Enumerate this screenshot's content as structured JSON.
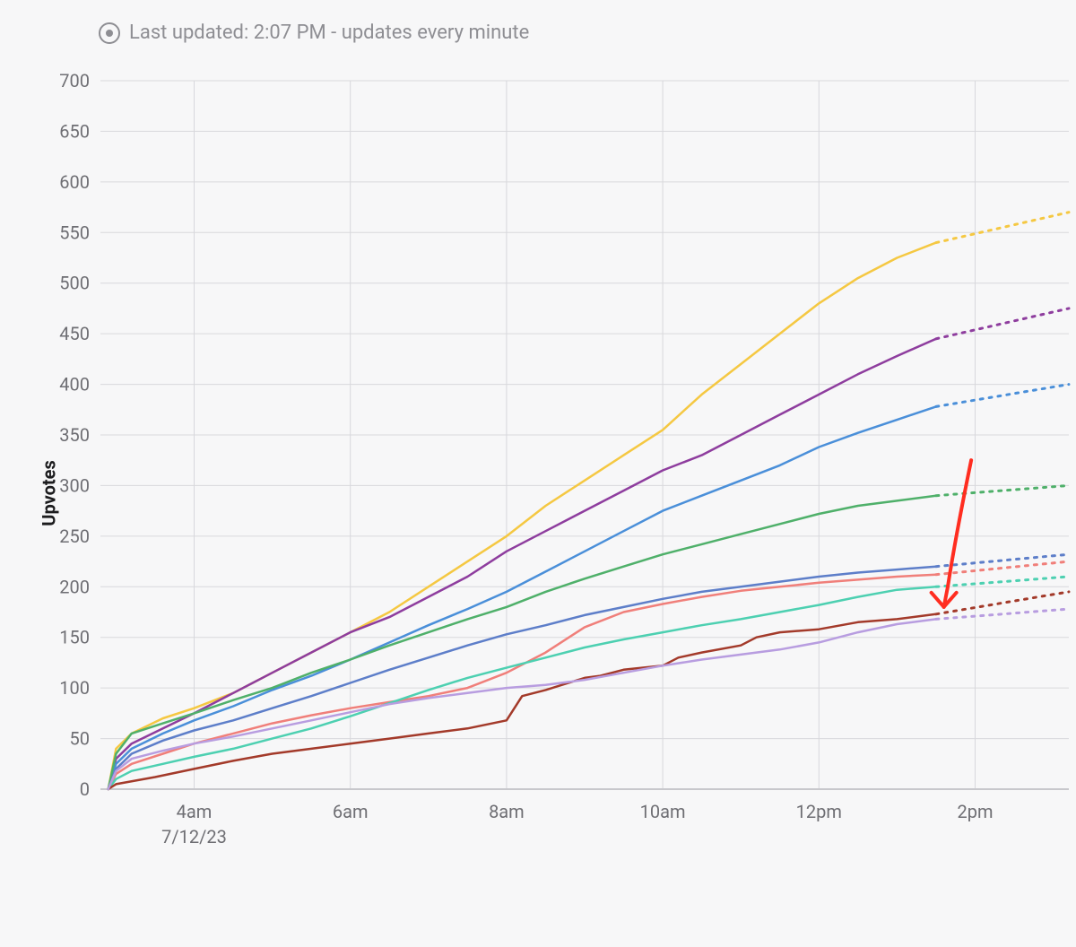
{
  "header": {
    "status_text": "Last updated: 2:07 PM - updates every minute"
  },
  "chart": {
    "type": "line",
    "ylabel": "Upvotes",
    "date_label": "7/12/23",
    "background_color": "#f7f7f8",
    "grid_color": "#d8d8dc",
    "axis_text_color": "#6e6e73",
    "line_width": 2.5,
    "forecast_dash": "3 7",
    "x_range_hours": [
      2.8,
      15.2
    ],
    "ylim": [
      0,
      700
    ],
    "ytick_step": 50,
    "yticks": [
      0,
      50,
      100,
      150,
      200,
      250,
      300,
      350,
      400,
      450,
      500,
      550,
      600,
      650,
      700
    ],
    "xticks": [
      {
        "h": 4,
        "label": "4am"
      },
      {
        "h": 6,
        "label": "6am"
      },
      {
        "h": 8,
        "label": "8am"
      },
      {
        "h": 10,
        "label": "10am"
      },
      {
        "h": 12,
        "label": "12pm"
      },
      {
        "h": 14,
        "label": "2pm"
      }
    ],
    "series": [
      {
        "name": "yellow",
        "color": "#f5c842",
        "points": [
          [
            2.9,
            0
          ],
          [
            3.0,
            40
          ],
          [
            3.2,
            55
          ],
          [
            3.6,
            70
          ],
          [
            4.0,
            80
          ],
          [
            4.5,
            95
          ],
          [
            5.0,
            115
          ],
          [
            5.5,
            135
          ],
          [
            6.0,
            155
          ],
          [
            6.5,
            175
          ],
          [
            7.0,
            200
          ],
          [
            7.5,
            225
          ],
          [
            8.0,
            250
          ],
          [
            8.5,
            280
          ],
          [
            9.0,
            305
          ],
          [
            9.5,
            330
          ],
          [
            10.0,
            355
          ],
          [
            10.5,
            390
          ],
          [
            11.0,
            420
          ],
          [
            11.5,
            450
          ],
          [
            12.0,
            480
          ],
          [
            12.5,
            505
          ],
          [
            13.0,
            525
          ],
          [
            13.5,
            540
          ]
        ],
        "forecast_end": [
          15.2,
          570
        ]
      },
      {
        "name": "purple",
        "color": "#8e3d9e",
        "points": [
          [
            2.9,
            0
          ],
          [
            3.0,
            30
          ],
          [
            3.2,
            45
          ],
          [
            3.6,
            60
          ],
          [
            4.0,
            75
          ],
          [
            4.5,
            95
          ],
          [
            5.0,
            115
          ],
          [
            5.5,
            135
          ],
          [
            6.0,
            155
          ],
          [
            6.5,
            170
          ],
          [
            7.0,
            190
          ],
          [
            7.5,
            210
          ],
          [
            8.0,
            235
          ],
          [
            8.5,
            255
          ],
          [
            9.0,
            275
          ],
          [
            9.5,
            295
          ],
          [
            10.0,
            315
          ],
          [
            10.5,
            330
          ],
          [
            11.0,
            350
          ],
          [
            11.5,
            370
          ],
          [
            12.0,
            390
          ],
          [
            12.5,
            410
          ],
          [
            13.0,
            428
          ],
          [
            13.5,
            445
          ]
        ],
        "forecast_end": [
          15.2,
          475
        ]
      },
      {
        "name": "blue",
        "color": "#4a8fd9",
        "points": [
          [
            2.9,
            0
          ],
          [
            3.0,
            25
          ],
          [
            3.2,
            40
          ],
          [
            3.6,
            55
          ],
          [
            4.0,
            68
          ],
          [
            4.5,
            82
          ],
          [
            5.0,
            98
          ],
          [
            5.5,
            112
          ],
          [
            6.0,
            128
          ],
          [
            6.5,
            145
          ],
          [
            7.0,
            162
          ],
          [
            7.5,
            178
          ],
          [
            8.0,
            195
          ],
          [
            8.5,
            215
          ],
          [
            9.0,
            235
          ],
          [
            9.5,
            255
          ],
          [
            10.0,
            275
          ],
          [
            10.5,
            290
          ],
          [
            11.0,
            305
          ],
          [
            11.5,
            320
          ],
          [
            12.0,
            338
          ],
          [
            12.5,
            352
          ],
          [
            13.0,
            365
          ],
          [
            13.5,
            378
          ]
        ],
        "forecast_end": [
          15.2,
          400
        ]
      },
      {
        "name": "green",
        "color": "#4fb06a",
        "points": [
          [
            2.9,
            0
          ],
          [
            3.0,
            35
          ],
          [
            3.2,
            55
          ],
          [
            3.6,
            65
          ],
          [
            4.0,
            75
          ],
          [
            4.5,
            88
          ],
          [
            5.0,
            100
          ],
          [
            5.5,
            115
          ],
          [
            6.0,
            128
          ],
          [
            6.5,
            142
          ],
          [
            7.0,
            155
          ],
          [
            7.5,
            168
          ],
          [
            8.0,
            180
          ],
          [
            8.5,
            195
          ],
          [
            9.0,
            208
          ],
          [
            9.5,
            220
          ],
          [
            10.0,
            232
          ],
          [
            10.5,
            242
          ],
          [
            11.0,
            252
          ],
          [
            11.5,
            262
          ],
          [
            12.0,
            272
          ],
          [
            12.5,
            280
          ],
          [
            13.0,
            285
          ],
          [
            13.5,
            290
          ]
        ],
        "forecast_end": [
          15.2,
          300
        ]
      },
      {
        "name": "midblue",
        "color": "#5d7ec9",
        "points": [
          [
            2.9,
            0
          ],
          [
            3.0,
            20
          ],
          [
            3.2,
            35
          ],
          [
            3.6,
            48
          ],
          [
            4.0,
            58
          ],
          [
            4.5,
            68
          ],
          [
            5.0,
            80
          ],
          [
            5.5,
            92
          ],
          [
            6.0,
            105
          ],
          [
            6.5,
            118
          ],
          [
            7.0,
            130
          ],
          [
            7.5,
            142
          ],
          [
            8.0,
            153
          ],
          [
            8.5,
            162
          ],
          [
            9.0,
            172
          ],
          [
            9.5,
            180
          ],
          [
            10.0,
            188
          ],
          [
            10.5,
            195
          ],
          [
            11.0,
            200
          ],
          [
            11.5,
            205
          ],
          [
            12.0,
            210
          ],
          [
            12.5,
            214
          ],
          [
            13.0,
            217
          ],
          [
            13.5,
            220
          ]
        ],
        "forecast_end": [
          15.2,
          232
        ]
      },
      {
        "name": "salmon",
        "color": "#f07f7a",
        "points": [
          [
            2.9,
            0
          ],
          [
            3.0,
            15
          ],
          [
            3.2,
            25
          ],
          [
            3.6,
            35
          ],
          [
            4.0,
            45
          ],
          [
            4.5,
            55
          ],
          [
            5.0,
            65
          ],
          [
            5.5,
            73
          ],
          [
            6.0,
            80
          ],
          [
            6.5,
            86
          ],
          [
            7.0,
            92
          ],
          [
            7.5,
            100
          ],
          [
            8.0,
            115
          ],
          [
            8.5,
            135
          ],
          [
            9.0,
            160
          ],
          [
            9.5,
            175
          ],
          [
            10.0,
            183
          ],
          [
            10.5,
            190
          ],
          [
            11.0,
            196
          ],
          [
            11.5,
            200
          ],
          [
            12.0,
            204
          ],
          [
            12.5,
            207
          ],
          [
            13.0,
            210
          ],
          [
            13.5,
            212
          ]
        ],
        "forecast_end": [
          15.2,
          225
        ]
      },
      {
        "name": "teal",
        "color": "#4dd0b1",
        "points": [
          [
            2.9,
            0
          ],
          [
            3.0,
            10
          ],
          [
            3.2,
            18
          ],
          [
            3.6,
            25
          ],
          [
            4.0,
            32
          ],
          [
            4.5,
            40
          ],
          [
            5.0,
            50
          ],
          [
            5.5,
            60
          ],
          [
            6.0,
            72
          ],
          [
            6.5,
            85
          ],
          [
            7.0,
            98
          ],
          [
            7.5,
            110
          ],
          [
            8.0,
            120
          ],
          [
            8.5,
            130
          ],
          [
            9.0,
            140
          ],
          [
            9.5,
            148
          ],
          [
            10.0,
            155
          ],
          [
            10.5,
            162
          ],
          [
            11.0,
            168
          ],
          [
            11.5,
            175
          ],
          [
            12.0,
            182
          ],
          [
            12.5,
            190
          ],
          [
            13.0,
            197
          ],
          [
            13.5,
            200
          ]
        ],
        "forecast_end": [
          15.2,
          210
        ]
      },
      {
        "name": "darkred",
        "color": "#a33a2a",
        "points": [
          [
            2.9,
            0
          ],
          [
            3.0,
            5
          ],
          [
            3.5,
            12
          ],
          [
            4.0,
            20
          ],
          [
            4.5,
            28
          ],
          [
            5.0,
            35
          ],
          [
            5.5,
            40
          ],
          [
            6.0,
            45
          ],
          [
            6.5,
            50
          ],
          [
            7.0,
            55
          ],
          [
            7.5,
            60
          ],
          [
            8.0,
            68
          ],
          [
            8.2,
            92
          ],
          [
            8.5,
            98
          ],
          [
            9.0,
            110
          ],
          [
            9.2,
            112
          ],
          [
            9.5,
            118
          ],
          [
            10.0,
            122
          ],
          [
            10.2,
            130
          ],
          [
            10.5,
            135
          ],
          [
            11.0,
            142
          ],
          [
            11.2,
            150
          ],
          [
            11.5,
            155
          ],
          [
            12.0,
            158
          ],
          [
            12.5,
            165
          ],
          [
            13.0,
            168
          ],
          [
            13.5,
            173
          ]
        ],
        "forecast_end": [
          15.2,
          195
        ]
      },
      {
        "name": "lavender",
        "color": "#b89de0",
        "points": [
          [
            2.9,
            0
          ],
          [
            3.0,
            18
          ],
          [
            3.2,
            30
          ],
          [
            3.6,
            38
          ],
          [
            4.0,
            45
          ],
          [
            4.5,
            52
          ],
          [
            5.0,
            60
          ],
          [
            5.5,
            68
          ],
          [
            6.0,
            76
          ],
          [
            6.5,
            84
          ],
          [
            7.0,
            90
          ],
          [
            7.5,
            95
          ],
          [
            8.0,
            100
          ],
          [
            8.5,
            103
          ],
          [
            9.0,
            108
          ],
          [
            9.5,
            115
          ],
          [
            10.0,
            122
          ],
          [
            10.5,
            128
          ],
          [
            11.0,
            133
          ],
          [
            11.5,
            138
          ],
          [
            12.0,
            145
          ],
          [
            12.5,
            155
          ],
          [
            13.0,
            163
          ],
          [
            13.5,
            168
          ]
        ],
        "forecast_end": [
          15.2,
          178
        ]
      }
    ],
    "annotation_arrow": {
      "color": "#ff2d20",
      "path_hours_upvotes": [
        [
          13.95,
          325
        ],
        [
          13.75,
          250
        ],
        [
          13.65,
          200
        ],
        [
          13.6,
          180
        ]
      ],
      "head_at": [
        13.6,
        180
      ]
    }
  }
}
